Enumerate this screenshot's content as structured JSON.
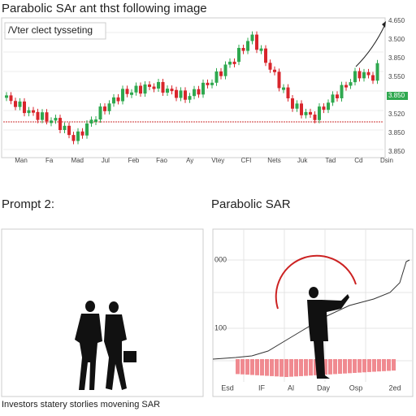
{
  "top_chart": {
    "title": "Parabolic SAr ant thst following image",
    "legend": "/Vter clect tysseting",
    "x_labels": [
      "Man",
      "Fa",
      "Mad",
      "Jul",
      "Feb",
      "Fao",
      "Ay",
      "Vtey",
      "CFI",
      "Nets",
      "Juk",
      "Tad",
      "Cd",
      "Dsin"
    ],
    "y_labels": [
      "4.650",
      "3.500",
      "3.850",
      "3.550",
      "3.850",
      "3.520",
      "3.850",
      "3.850"
    ]
  },
  "left_panel": {
    "heading": "Prompt 2:",
    "caption": "Investors statery storlies movening SAR"
  },
  "right_panel": {
    "heading": "Parabolic SAR",
    "y_labels": [
      "000",
      "100"
    ],
    "x_labels": [
      "Esd",
      "IF",
      "Al",
      "Day",
      "Osp",
      "2ed"
    ]
  }
}
